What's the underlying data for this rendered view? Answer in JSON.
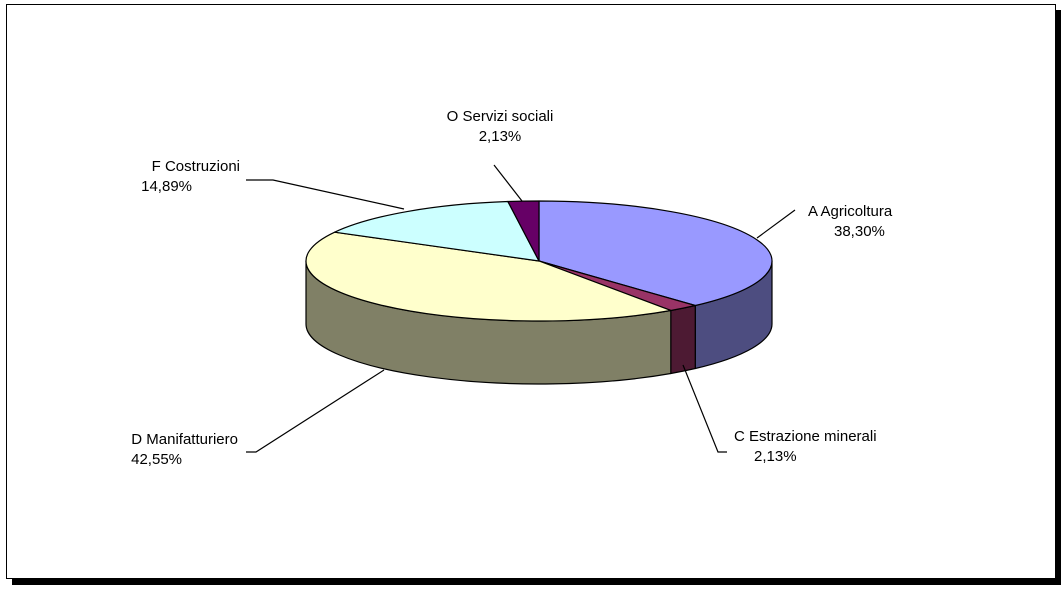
{
  "chart_data": {
    "type": "pie",
    "three_d": true,
    "legend": "none",
    "title": "",
    "slices": [
      {
        "code": "A",
        "name": "Agricoltura",
        "value": 38.3,
        "percent_label": "38,30%",
        "color": "#9999FF",
        "side_color": "#4D4D80"
      },
      {
        "code": "C",
        "name": "Estrazione minerali",
        "value": 2.13,
        "percent_label": "2,13%",
        "color": "#993366",
        "side_color": "#4D1A33"
      },
      {
        "code": "D",
        "name": "Manifatturiero",
        "value": 42.55,
        "percent_label": "42,55%",
        "color": "#FFFFCC",
        "side_color": "#808066"
      },
      {
        "code": "F",
        "name": "Costruzioni",
        "value": 14.89,
        "percent_label": "14,89%",
        "color": "#CCFFFF",
        "side_color": "#668080"
      },
      {
        "code": "O",
        "name": "Servizi sociali",
        "value": 2.13,
        "percent_label": "2,13%",
        "color": "#660066",
        "side_color": "#330033"
      }
    ]
  }
}
